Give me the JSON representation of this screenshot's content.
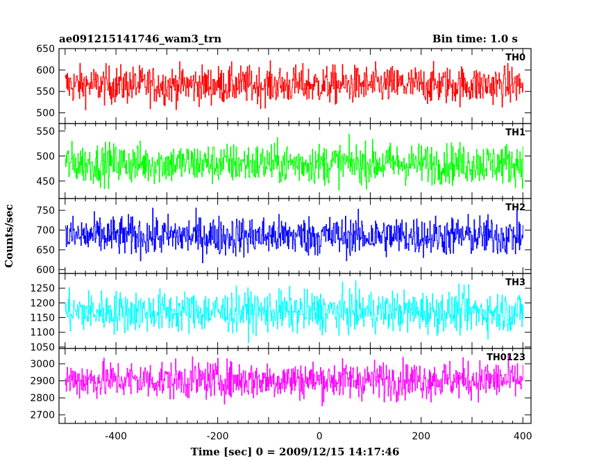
{
  "chart_data": {
    "type": "line",
    "title": "ae091215141746_wam3_trn",
    "subtitle": "Bin time: 1.0 s",
    "xlabel": "Time [sec] 0 = 2009/12/15 14:17:46",
    "ylabel": "Counts/sec",
    "xlim": [
      -512,
      416
    ],
    "data_range": [
      -500,
      400
    ],
    "x_ticks": [
      -400,
      -200,
      0,
      200,
      400
    ],
    "grid": false,
    "panels": [
      {
        "name": "TH0",
        "color": "#ff0000",
        "mean": 565,
        "spread": 22,
        "ylim": [
          475,
          650
        ],
        "y_ticks": [
          500,
          550,
          600,
          650
        ]
      },
      {
        "name": "TH1",
        "color": "#00ff00",
        "mean": 485,
        "spread": 20,
        "ylim": [
          415,
          565
        ],
        "y_ticks": [
          450,
          500,
          550
        ]
      },
      {
        "name": "TH2",
        "color": "#0000ff",
        "mean": 685,
        "spread": 25,
        "ylim": [
          590,
          780
        ],
        "y_ticks": [
          600,
          650,
          700,
          750
        ]
      },
      {
        "name": "TH3",
        "color": "#00ffff",
        "mean": 1170,
        "spread": 35,
        "ylim": [
          1045,
          1300
        ],
        "y_ticks": [
          1050,
          1100,
          1150,
          1200,
          1250
        ]
      },
      {
        "name": "TH0123",
        "color": "#ff00ff",
        "mean": 2905,
        "spread": 55,
        "ylim": [
          2650,
          3090
        ],
        "y_ticks": [
          2700,
          2800,
          2900,
          3000
        ]
      }
    ]
  }
}
